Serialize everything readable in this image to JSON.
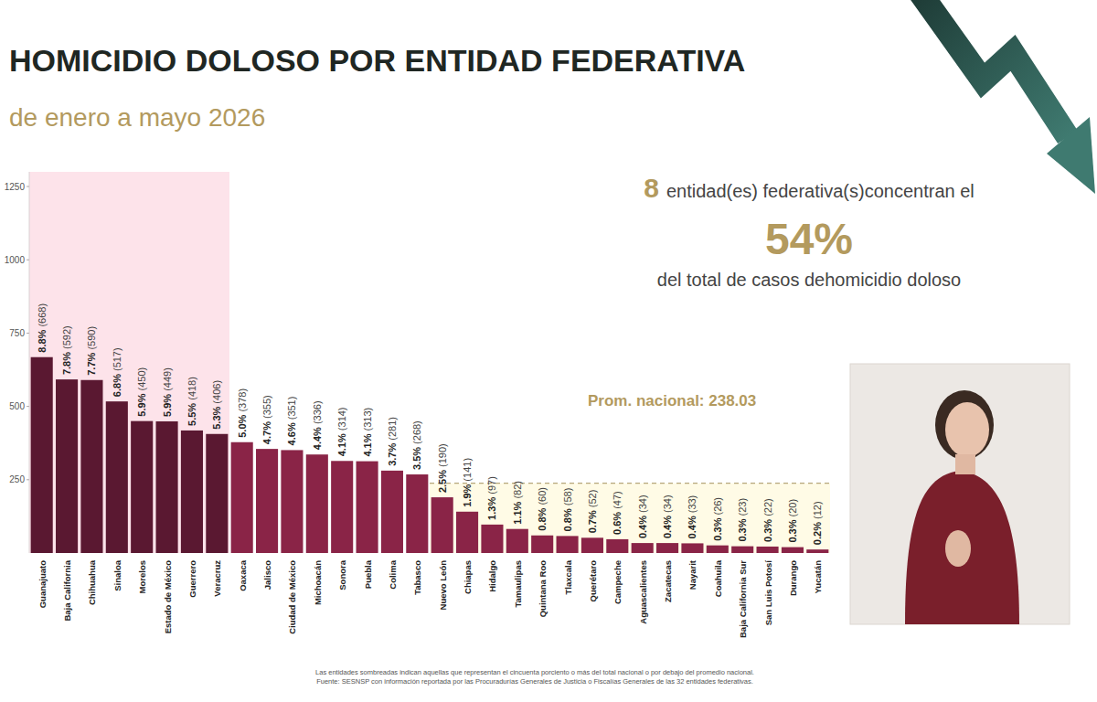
{
  "chart_data": {
    "type": "bar",
    "title": "HOMICIDIO DOLOSO POR ENTIDAD FEDERATIVA",
    "subtitle": "de enero a mayo 2026",
    "categories": [
      "Guanajuato",
      "Baja California",
      "Chihuahua",
      "Sinaloa",
      "Morelos",
      "Estado de México",
      "Guerrero",
      "Veracruz",
      "Oaxaca",
      "Jalisco",
      "Ciudad de México",
      "Michoacán",
      "Sonora",
      "Puebla",
      "Colima",
      "Tabasco",
      "Nuevo León",
      "Chiapas",
      "Hidalgo",
      "Tamaulipas",
      "Quintana Roo",
      "Tlaxcala",
      "Querétaro",
      "Campeche",
      "Aguascalientes",
      "Zacatecas",
      "Nayarit",
      "Coahuila",
      "Baja California Sur",
      "San Luis Potosí",
      "Durango",
      "Yucatán"
    ],
    "values": [
      668,
      592,
      590,
      517,
      450,
      449,
      418,
      406,
      378,
      355,
      351,
      336,
      314,
      313,
      281,
      268,
      190,
      141,
      97,
      82,
      60,
      58,
      52,
      47,
      34,
      34,
      33,
      26,
      23,
      22,
      20,
      12
    ],
    "value_labels": [
      "8.8% (668)",
      "7.8% (592)",
      "7.7% (590)",
      "6.8% (517)",
      "5.9% (450)",
      "5.9% (449)",
      "5.5% (418)",
      "5.3% (406)",
      "5.0% (378)",
      "4.7% (355)",
      "4.6% (351)",
      "4.4% (336)",
      "4.1% (314)",
      "4.1% (313)",
      "3.7% (281)",
      "3.5% (268)",
      "2.5% (190)",
      "1.9% (141)",
      "1.3% (97)",
      "1.1% (82)",
      "0.8% (60)",
      "0.8% (58)",
      "0.7% (52)",
      "0.6% (47)",
      "0.4% (34)",
      "0.4% (34)",
      "0.4% (33)",
      "0.3% (26)",
      "0.3% (23)",
      "0.3% (22)",
      "0.3% (20)",
      "0.2% (12)"
    ],
    "colors": [
      "#5a1831",
      "#5a1831",
      "#5a1831",
      "#5a1831",
      "#5a1831",
      "#5a1831",
      "#5a1831",
      "#5a1831",
      "#8a2447",
      "#8a2447",
      "#8a2447",
      "#8a2447",
      "#8a2447",
      "#8a2447",
      "#8a2447",
      "#8a2447",
      "#8a2447",
      "#8a2447",
      "#8a2447",
      "#8a2447",
      "#8a2447",
      "#8a2447",
      "#8a2447",
      "#8a2447",
      "#8a2447",
      "#8a2447",
      "#8a2447",
      "#8a2447",
      "#8a2447",
      "#8a2447",
      "#8a2447",
      "#8a2447"
    ],
    "ylim": [
      0,
      1300
    ],
    "yticks": [
      250,
      500,
      750,
      1000,
      1250
    ],
    "grid": false,
    "data_labels": true,
    "reference_line": {
      "value": 238.03,
      "label": "Prom. nacional: 238.03"
    },
    "annotation": {
      "count": 8,
      "text": "entidad(es) federativa(s)concentran el",
      "share": "54%",
      "text2": "del total de casos dehomicidio doloso"
    },
    "footnotes": [
      "Las entidades sombreadas indican aquellas que representan el cincuenta porciento o más del total nacional o por debajo del promedio nacional.",
      "Fuente: SESNSP con información reportada por las Procuradurías Generales de Justicia o Fiscalías Generales de las 32 entidades federativas."
    ]
  }
}
